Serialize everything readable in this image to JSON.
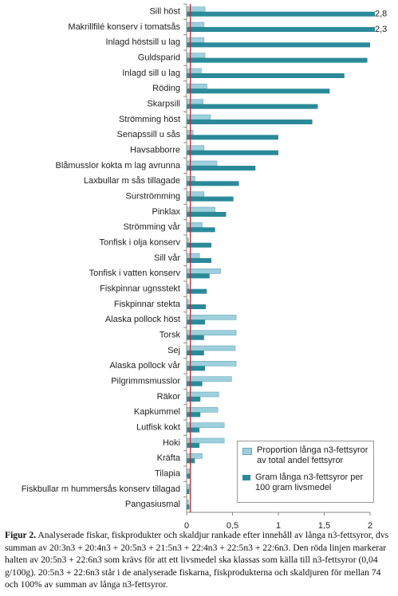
{
  "chart_data": {
    "type": "hbar",
    "categories": [
      "Sill höst",
      "Makrillfilé konserv i tomatsås",
      "Inlagd höstsill u lag",
      "Guldsparid",
      "Inlagd sill u lag",
      "Röding",
      "Skarpsill",
      "Strömming höst",
      "Senapssill u sås",
      "Havsabborre",
      "Blåmusslor kokta m lag avrunna",
      "Laxbullar m sås tillagade",
      "Surströmming",
      "Pinklax",
      "Strömming vår",
      "Tonfisk i olja konserv",
      "Sill vår",
      "Tonfisk i vatten konserv",
      "Fiskpinnar ugnsstekt",
      "Fiskpinnar stekta",
      "Alaska pollock höst",
      "Torsk",
      "Sej",
      "Alaska pollock vår",
      "Pilgrimmsmusslor",
      "Räkor",
      "Kapkummel",
      "Lutfisk kokt",
      "Hoki",
      "Kräfta",
      "Tilapia",
      "Fiskbullar m hummersås konserv tillagad",
      "Pangasiusmal"
    ],
    "series": [
      {
        "name": "Proportion långa n3-fettsyror av total andel fettsyror",
        "color": "#9dd0dc",
        "values": [
          0.2,
          0.19,
          0.19,
          0.2,
          0.16,
          0.22,
          0.18,
          0.26,
          0.07,
          0.19,
          0.33,
          0.09,
          0.19,
          0.31,
          0.17,
          0.02,
          0.14,
          0.37,
          0.02,
          0.02,
          0.54,
          0.54,
          0.53,
          0.54,
          0.49,
          0.35,
          0.34,
          0.41,
          0.41,
          0.17,
          0.04,
          0.04,
          0.02
        ]
      },
      {
        "name": "Gram långa n3-fettsyror per 100 gram livsmedel",
        "color": "#2a8a99",
        "values": [
          2.8,
          2.3,
          2.0,
          1.97,
          1.72,
          1.56,
          1.43,
          1.37,
          1.0,
          1.0,
          0.75,
          0.57,
          0.51,
          0.43,
          0.31,
          0.27,
          0.27,
          0.25,
          0.22,
          0.21,
          0.2,
          0.19,
          0.19,
          0.2,
          0.17,
          0.15,
          0.15,
          0.14,
          0.14,
          0.09,
          0.04,
          0.03,
          0.03
        ],
        "value_labels": [
          "2,8",
          "2,3",
          null,
          null,
          null,
          null,
          null,
          null,
          null,
          null,
          null,
          null,
          null,
          null,
          null,
          null,
          null,
          null,
          null,
          null,
          null,
          null,
          null,
          null,
          null,
          null,
          null,
          null,
          null,
          null,
          null,
          null,
          null
        ]
      }
    ],
    "xlim": [
      0,
      2
    ],
    "xticks": [
      0,
      {
        "value": 0.5,
        "label": "0,5"
      },
      1,
      {
        "value": 1.5,
        "label": "1,5"
      },
      2
    ],
    "reference_line": 0.04,
    "reference_color": "#d0202a",
    "legend": "lower right",
    "caption_label": "Figur 2.",
    "caption": "Analyserade fiskar, fiskprodukter och skaldjur rankade efter innehåll av långa n3-fettsyror, dvs summan av 20:3n3 + 20:4n3 + 20:5n3 + 21:5n3 + 22:4n3 + 22:5n3 + 22:6n3. Den röda linjen markerar halten av 20:5n3 + 22:6n3 som krävs för att ett livsmedel ska klassas som källa till n3-fettsyror (0,04 g/100g). 20:5n3 + 22:6n3 står i de analyserade fiskarna, fiskprodukterna och skaldjuren för mellan 74 och 100% av summan av långa n3-fettsyror."
  }
}
